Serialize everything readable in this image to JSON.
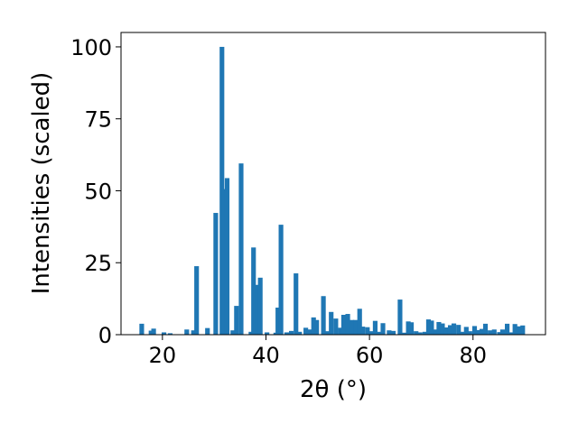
{
  "chart_data": {
    "type": "bar",
    "title": "",
    "xlabel": "2θ (°)",
    "ylabel": "Intensities (scaled)",
    "xlim": [
      12,
      94
    ],
    "ylim": [
      0,
      105
    ],
    "xticks": [
      20,
      40,
      60,
      80
    ],
    "yticks": [
      0,
      25,
      50,
      75,
      100
    ],
    "grid": false,
    "bar_color": "#1f77b4",
    "x": [
      16.0,
      17.8,
      18.3,
      20.3,
      21.5,
      24.7,
      26.0,
      26.6,
      28.7,
      30.3,
      31.5,
      32.1,
      32.5,
      33.6,
      34.3,
      35.2,
      37.1,
      37.6,
      38.3,
      38.9,
      40.2,
      41.9,
      42.3,
      42.9,
      44.0,
      44.9,
      45.8,
      46.5,
      47.7,
      48.5,
      49.2,
      49.8,
      51.1,
      51.8,
      52.6,
      53.5,
      54.4,
      55.0,
      55.8,
      56.6,
      57.3,
      58.1,
      58.7,
      59.6,
      60.3,
      61.1,
      62.0,
      62.6,
      63.8,
      64.6,
      65.9,
      66.8,
      67.5,
      68.1,
      69.0,
      69.8,
      70.7,
      71.4,
      72.0,
      72.8,
      73.4,
      74.1,
      74.8,
      75.6,
      76.3,
      77.2,
      77.9,
      78.7,
      79.4,
      80.3,
      81.0,
      81.7,
      82.4,
      83.3,
      84.1,
      85.1,
      85.7,
      86.6,
      87.3,
      88.1,
      88.9,
      89.6
    ],
    "values": [
      3.8,
      1.4,
      2.1,
      0.8,
      0.5,
      1.8,
      1.5,
      23.8,
      2.3,
      42.3,
      100.0,
      50.6,
      54.4,
      1.5,
      10.0,
      59.5,
      1.0,
      30.3,
      17.3,
      19.8,
      0.8,
      0.7,
      9.4,
      38.2,
      0.8,
      1.3,
      21.3,
      1.0,
      2.4,
      1.8,
      6.0,
      5.1,
      13.4,
      1.2,
      7.9,
      5.6,
      2.4,
      6.9,
      7.2,
      5.1,
      5.1,
      9.0,
      2.8,
      2.6,
      1.2,
      4.8,
      1.0,
      4.0,
      1.5,
      1.3,
      12.2,
      0.7,
      4.6,
      4.3,
      1.2,
      0.8,
      1.0,
      5.3,
      4.9,
      1.8,
      4.4,
      3.9,
      2.5,
      3.3,
      3.9,
      3.4,
      1.0,
      2.7,
      1.2,
      3.0,
      1.6,
      2.0,
      3.8,
      1.5,
      1.8,
      0.9,
      1.8,
      3.8,
      0.8,
      3.7,
      2.9,
      3.2
    ]
  }
}
